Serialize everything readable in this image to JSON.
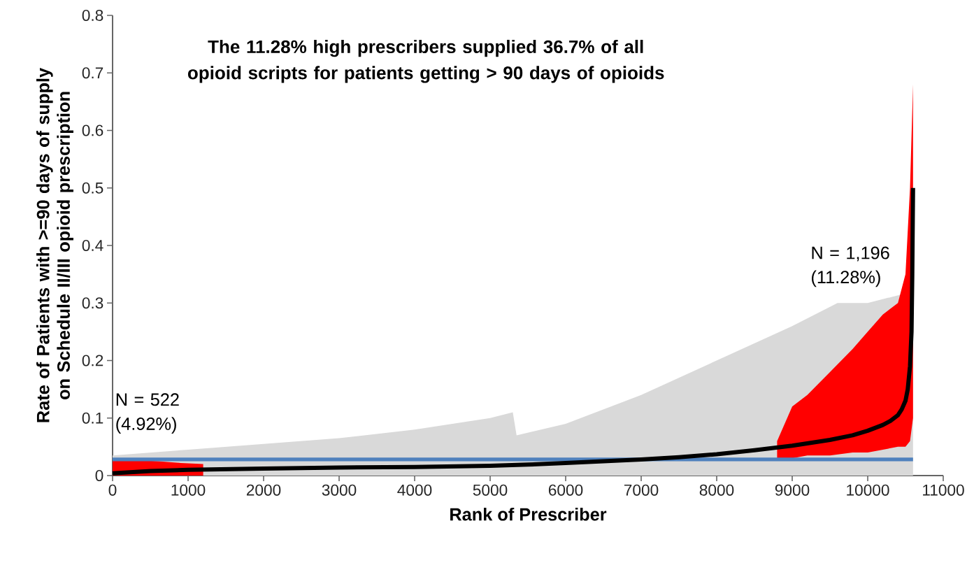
{
  "chart_data": {
    "type": "line",
    "title": "The 11.28% high prescribers supplied 36.7% of all opioid scripts for patients getting > 90 days of opioids",
    "xlabel": "Rank of Prescriber",
    "ylabel": "Rate of Patients with >=90 days of supply on Schedule II/III opioid prescription",
    "xlim": [
      0,
      11000
    ],
    "xticks": [
      0,
      1000,
      2000,
      3000,
      4000,
      5000,
      6000,
      7000,
      8000,
      9000,
      10000,
      11000
    ],
    "ylim": [
      0,
      0.8
    ],
    "yticks": [
      0,
      0.1,
      0.2,
      0.3,
      0.4,
      0.5,
      0.6,
      0.7,
      0.8
    ],
    "grid": false,
    "marker": "none",
    "line_style": "solid",
    "series": [
      {
        "color": "#d9d9d9",
        "x": [
          0,
          1000,
          2000,
          3000,
          4000,
          5000,
          5300,
          5350,
          6000,
          7000,
          8000,
          9000,
          9600,
          10000,
          10600
        ],
        "values": [
          null,
          null,
          null,
          null,
          null,
          null,
          null,
          null,
          null,
          null,
          null,
          null,
          null,
          null,
          null
        ],
        "upper": [
          0.035,
          0.045,
          0.055,
          0.065,
          0.08,
          0.1,
          0.11,
          0.07,
          0.09,
          0.14,
          0.2,
          0.26,
          0.3,
          0.3,
          0.32
        ],
        "lower": [
          0,
          0,
          0,
          0,
          0,
          0,
          0,
          0,
          0,
          0,
          0,
          0,
          0,
          0,
          0
        ]
      },
      {
        "color": "#ff0000",
        "x": [
          8800,
          9000,
          9200,
          9500,
          9800,
          10000,
          10200,
          10400,
          10500,
          10560,
          10600
        ],
        "values": [
          null,
          null,
          null,
          null,
          null,
          null,
          null,
          null,
          null,
          null,
          null
        ],
        "upper": [
          0.06,
          0.12,
          0.14,
          0.18,
          0.22,
          0.25,
          0.28,
          0.3,
          0.35,
          0.5,
          0.68
        ],
        "lower": [
          0.03,
          0.03,
          0.035,
          0.035,
          0.04,
          0.04,
          0.045,
          0.05,
          0.05,
          0.06,
          0.1
        ]
      },
      {
        "color": "#ff0000",
        "x": [
          0,
          300,
          600,
          900,
          1200
        ],
        "values": [
          null,
          null,
          null,
          null,
          null
        ],
        "upper": [
          0.028,
          0.027,
          0.025,
          0.022,
          0.02
        ],
        "lower": [
          0,
          0,
          0,
          0,
          0
        ]
      },
      {
        "color": "#000000",
        "x": [
          0,
          500,
          1000,
          2000,
          3000,
          4000,
          5000,
          5500,
          6000,
          6500,
          7000,
          7500,
          8000,
          8500,
          9000,
          9500,
          9800,
          10000,
          10200,
          10300,
          10400,
          10450,
          10500,
          10530,
          10560,
          10580,
          10590,
          10600
        ],
        "values": [
          0.004,
          0.008,
          0.01,
          0.012,
          0.014,
          0.015,
          0.017,
          0.019,
          0.022,
          0.025,
          0.028,
          0.032,
          0.037,
          0.044,
          0.052,
          0.062,
          0.07,
          0.078,
          0.088,
          0.095,
          0.105,
          0.115,
          0.13,
          0.15,
          0.19,
          0.25,
          0.35,
          0.5
        ]
      }
    ],
    "ref_lines": [
      {
        "axis": "y",
        "value": 0.028,
        "color": "#4f81bd"
      }
    ],
    "annotations": [
      "N = 522 (4.92%)",
      "N = 1,196 (11.28%)"
    ]
  }
}
